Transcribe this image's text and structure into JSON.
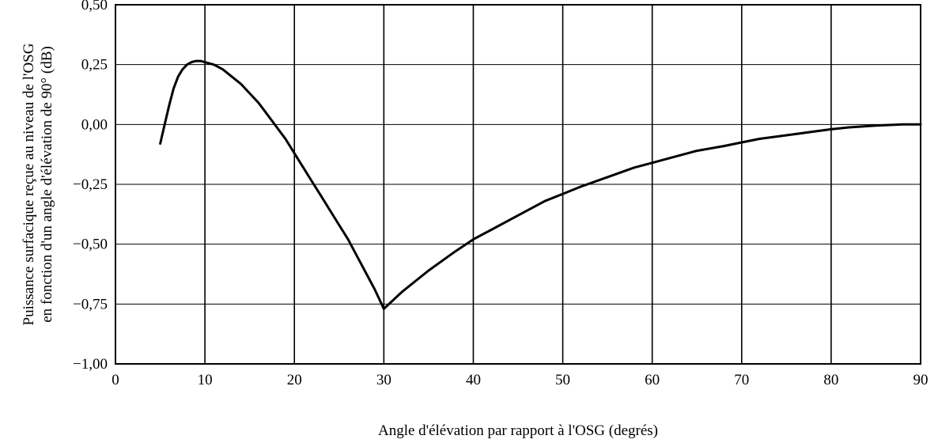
{
  "chart_data": {
    "type": "line",
    "title": "",
    "xlabel": "Angle d'élévation par rapport à l'OSG (degrés)",
    "ylabel_lines": [
      "Puissance surfacique reçue au niveau de l'OSG",
      "en fonction d'un angle d'élévation de 90°  (dB)"
    ],
    "xlim": [
      0,
      90
    ],
    "ylim": [
      -1.0,
      0.5
    ],
    "x_ticks": [
      0,
      10,
      20,
      30,
      40,
      50,
      60,
      70,
      80,
      90
    ],
    "x_tick_labels": [
      "0",
      "10",
      "20",
      "30",
      "40",
      "50",
      "60",
      "70",
      "80",
      "90"
    ],
    "y_ticks": [
      0.5,
      0.25,
      0.0,
      -0.25,
      -0.5,
      -0.75,
      -1.0
    ],
    "y_tick_labels": [
      "0,50",
      "0,25",
      "0,00",
      "−0,25",
      "−0,50",
      "−0,75",
      "−1,00"
    ],
    "grid": true,
    "legend": "none",
    "line_color": "#000000",
    "series": [
      {
        "x": [
          5,
          5.5,
          6,
          6.5,
          7,
          7.5,
          8,
          8.5,
          9,
          9.5,
          10,
          10.5,
          11,
          12,
          13,
          14,
          15,
          16,
          17,
          18,
          19,
          20,
          21,
          22,
          23,
          24,
          25,
          26,
          27,
          28,
          29,
          30,
          32,
          35,
          38,
          40,
          42,
          45,
          48,
          50,
          52,
          55,
          58,
          60,
          62,
          65,
          68,
          70,
          72,
          75,
          78,
          80,
          82,
          85,
          88,
          90
        ],
        "y": [
          -0.08,
          0.0,
          0.08,
          0.15,
          0.2,
          0.23,
          0.25,
          0.26,
          0.265,
          0.265,
          0.26,
          0.255,
          0.25,
          0.23,
          0.2,
          0.17,
          0.13,
          0.09,
          0.04,
          -0.01,
          -0.06,
          -0.12,
          -0.18,
          -0.24,
          -0.3,
          -0.36,
          -0.42,
          -0.48,
          -0.55,
          -0.62,
          -0.69,
          -0.77,
          -0.7,
          -0.61,
          -0.53,
          -0.48,
          -0.44,
          -0.38,
          -0.32,
          -0.29,
          -0.26,
          -0.22,
          -0.18,
          -0.16,
          -0.14,
          -0.11,
          -0.09,
          -0.075,
          -0.06,
          -0.045,
          -0.03,
          -0.02,
          -0.012,
          -0.005,
          0.0,
          0.0
        ]
      }
    ]
  }
}
